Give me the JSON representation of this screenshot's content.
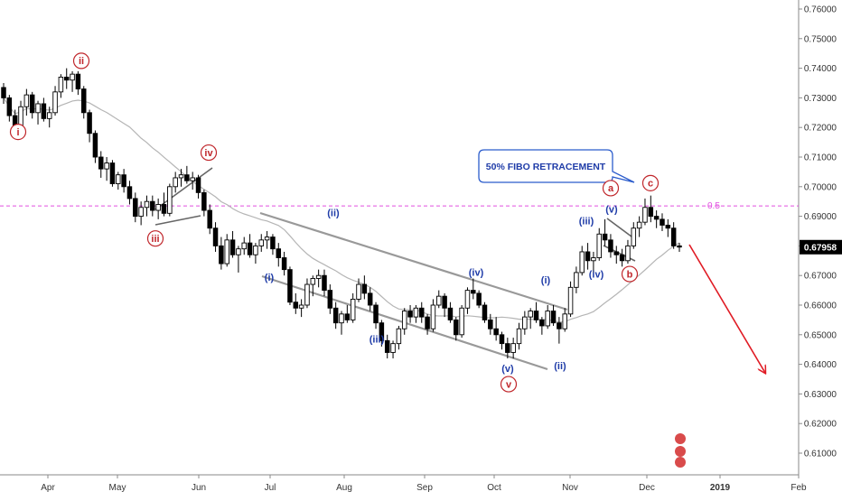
{
  "chart_data": {
    "type": "candlestick",
    "instrument_last_price": "0.67958",
    "y_ticks": [
      "0.76000",
      "0.75000",
      "0.74000",
      "0.73000",
      "0.72000",
      "0.71000",
      "0.70000",
      "0.69000",
      "0.68000",
      "0.67000",
      "0.66000",
      "0.65000",
      "0.64000",
      "0.63000",
      "0.62000",
      "0.61000"
    ],
    "x_ticks": [
      "Apr",
      "May",
      "Jun",
      "Jul",
      "Aug",
      "Sep",
      "Oct",
      "Nov",
      "Dec",
      "2019",
      "Feb"
    ],
    "ylim": [
      0.602,
      0.763
    ],
    "fib_level": {
      "label": "0.5",
      "value": 0.6935
    },
    "callout": "50% FIBO RETRACEMENT",
    "wave_labels": {
      "red": [
        {
          "text": "i",
          "value": 0.7185
        },
        {
          "text": "ii",
          "value": 0.7425
        },
        {
          "text": "iii",
          "value": 0.6825
        },
        {
          "text": "iv",
          "value": 0.7115
        },
        {
          "text": "v",
          "value": 0.6333
        },
        {
          "text": "a",
          "value": 0.6995
        },
        {
          "text": "b",
          "value": 0.6705
        },
        {
          "text": "c",
          "value": 0.7012
        }
      ],
      "blue": [
        {
          "text": "(i)",
          "value": 0.6694
        },
        {
          "text": "(ii)",
          "value": 0.6912
        },
        {
          "text": "(iii)",
          "value": 0.6485
        },
        {
          "text": "(iv)",
          "value": 0.6712
        },
        {
          "text": "(v)",
          "value": 0.6386
        },
        {
          "text": "(i)",
          "value": 0.6685
        },
        {
          "text": "(ii)",
          "value": 0.6395
        },
        {
          "text": "(iii)",
          "value": 0.6885
        },
        {
          "text": "(iv)",
          "value": 0.6705
        },
        {
          "text": "(v)",
          "value": 0.6925
        }
      ]
    },
    "candles": [
      [
        0.7335,
        0.735,
        0.728,
        0.73
      ],
      [
        0.73,
        0.731,
        0.722,
        0.724
      ],
      [
        0.724,
        0.726,
        0.717,
        0.72
      ],
      [
        0.72,
        0.729,
        0.719,
        0.727
      ],
      [
        0.727,
        0.733,
        0.724,
        0.731
      ],
      [
        0.731,
        0.732,
        0.723,
        0.725
      ],
      [
        0.725,
        0.729,
        0.721,
        0.728
      ],
      [
        0.728,
        0.73,
        0.722,
        0.723
      ],
      [
        0.723,
        0.727,
        0.72,
        0.725
      ],
      [
        0.725,
        0.734,
        0.724,
        0.732
      ],
      [
        0.732,
        0.738,
        0.73,
        0.737
      ],
      [
        0.737,
        0.74,
        0.733,
        0.736
      ],
      [
        0.736,
        0.739,
        0.732,
        0.738
      ],
      [
        0.738,
        0.739,
        0.731,
        0.733
      ],
      [
        0.733,
        0.734,
        0.723,
        0.725
      ],
      [
        0.725,
        0.726,
        0.715,
        0.718
      ],
      [
        0.718,
        0.719,
        0.708,
        0.71
      ],
      [
        0.71,
        0.712,
        0.703,
        0.706
      ],
      [
        0.706,
        0.71,
        0.702,
        0.708
      ],
      [
        0.708,
        0.709,
        0.7,
        0.701
      ],
      [
        0.701,
        0.705,
        0.699,
        0.704
      ],
      [
        0.704,
        0.706,
        0.698,
        0.7
      ],
      [
        0.7,
        0.702,
        0.694,
        0.696
      ],
      [
        0.696,
        0.698,
        0.688,
        0.69
      ],
      [
        0.69,
        0.695,
        0.687,
        0.693
      ],
      [
        0.693,
        0.697,
        0.69,
        0.695
      ],
      [
        0.695,
        0.697,
        0.69,
        0.692
      ],
      [
        0.692,
        0.696,
        0.689,
        0.694
      ],
      [
        0.694,
        0.698,
        0.69,
        0.691
      ],
      [
        0.691,
        0.701,
        0.69,
        0.7
      ],
      [
        0.7,
        0.705,
        0.698,
        0.703
      ],
      [
        0.703,
        0.706,
        0.7,
        0.704
      ],
      [
        0.704,
        0.707,
        0.701,
        0.702
      ],
      [
        0.702,
        0.705,
        0.699,
        0.703
      ],
      [
        0.703,
        0.704,
        0.696,
        0.698
      ],
      [
        0.698,
        0.699,
        0.69,
        0.692
      ],
      [
        0.692,
        0.694,
        0.684,
        0.686
      ],
      [
        0.686,
        0.688,
        0.678,
        0.68
      ],
      [
        0.68,
        0.683,
        0.672,
        0.674
      ],
      [
        0.674,
        0.684,
        0.673,
        0.682
      ],
      [
        0.682,
        0.685,
        0.676,
        0.677
      ],
      [
        0.677,
        0.68,
        0.671,
        0.679
      ],
      [
        0.679,
        0.683,
        0.677,
        0.681
      ],
      [
        0.681,
        0.684,
        0.676,
        0.677
      ],
      [
        0.677,
        0.681,
        0.674,
        0.68
      ],
      [
        0.68,
        0.684,
        0.678,
        0.682
      ],
      [
        0.682,
        0.685,
        0.679,
        0.683
      ],
      [
        0.683,
        0.684,
        0.677,
        0.679
      ],
      [
        0.679,
        0.681,
        0.673,
        0.676
      ],
      [
        0.676,
        0.678,
        0.67,
        0.672
      ],
      [
        0.672,
        0.673,
        0.66,
        0.661
      ],
      [
        0.661,
        0.664,
        0.657,
        0.659
      ],
      [
        0.659,
        0.662,
        0.656,
        0.66
      ],
      [
        0.66,
        0.669,
        0.659,
        0.667
      ],
      [
        0.667,
        0.67,
        0.663,
        0.669
      ],
      [
        0.669,
        0.672,
        0.666,
        0.67
      ],
      [
        0.67,
        0.672,
        0.663,
        0.665
      ],
      [
        0.665,
        0.667,
        0.657,
        0.659
      ],
      [
        0.659,
        0.661,
        0.652,
        0.654
      ],
      [
        0.654,
        0.658,
        0.65,
        0.657
      ],
      [
        0.657,
        0.66,
        0.654,
        0.655
      ],
      [
        0.655,
        0.664,
        0.654,
        0.662
      ],
      [
        0.662,
        0.669,
        0.661,
        0.667
      ],
      [
        0.667,
        0.67,
        0.662,
        0.664
      ],
      [
        0.664,
        0.666,
        0.658,
        0.66
      ],
      [
        0.66,
        0.661,
        0.652,
        0.654
      ],
      [
        0.654,
        0.655,
        0.646,
        0.648
      ],
      [
        0.648,
        0.65,
        0.642,
        0.644
      ],
      [
        0.644,
        0.648,
        0.642,
        0.647
      ],
      [
        0.647,
        0.653,
        0.645,
        0.652
      ],
      [
        0.652,
        0.659,
        0.65,
        0.658
      ],
      [
        0.658,
        0.66,
        0.654,
        0.656
      ],
      [
        0.656,
        0.66,
        0.654,
        0.659
      ],
      [
        0.659,
        0.661,
        0.654,
        0.656
      ],
      [
        0.656,
        0.657,
        0.65,
        0.652
      ],
      [
        0.652,
        0.662,
        0.651,
        0.66
      ],
      [
        0.66,
        0.665,
        0.659,
        0.663
      ],
      [
        0.663,
        0.664,
        0.656,
        0.659
      ],
      [
        0.659,
        0.661,
        0.654,
        0.655
      ],
      [
        0.655,
        0.656,
        0.648,
        0.65
      ],
      [
        0.65,
        0.66,
        0.649,
        0.659
      ],
      [
        0.659,
        0.666,
        0.657,
        0.665
      ],
      [
        0.665,
        0.669,
        0.662,
        0.664
      ],
      [
        0.664,
        0.665,
        0.659,
        0.66
      ],
      [
        0.66,
        0.661,
        0.654,
        0.655
      ],
      [
        0.655,
        0.657,
        0.65,
        0.652
      ],
      [
        0.652,
        0.656,
        0.648,
        0.65
      ],
      [
        0.65,
        0.651,
        0.645,
        0.647
      ],
      [
        0.647,
        0.649,
        0.642,
        0.644
      ],
      [
        0.644,
        0.649,
        0.642,
        0.647
      ],
      [
        0.647,
        0.654,
        0.645,
        0.652
      ],
      [
        0.652,
        0.658,
        0.65,
        0.656
      ],
      [
        0.656,
        0.659,
        0.652,
        0.658
      ],
      [
        0.658,
        0.661,
        0.654,
        0.655
      ],
      [
        0.655,
        0.656,
        0.65,
        0.653
      ],
      [
        0.653,
        0.66,
        0.652,
        0.658
      ],
      [
        0.658,
        0.66,
        0.653,
        0.654
      ],
      [
        0.654,
        0.656,
        0.647,
        0.652
      ],
      [
        0.652,
        0.659,
        0.651,
        0.657
      ],
      [
        0.657,
        0.668,
        0.656,
        0.666
      ],
      [
        0.666,
        0.673,
        0.664,
        0.671
      ],
      [
        0.671,
        0.68,
        0.67,
        0.678
      ],
      [
        0.678,
        0.681,
        0.672,
        0.675
      ],
      [
        0.675,
        0.678,
        0.671,
        0.676
      ],
      [
        0.676,
        0.686,
        0.675,
        0.684
      ],
      [
        0.684,
        0.689,
        0.68,
        0.682
      ],
      [
        0.682,
        0.684,
        0.676,
        0.678
      ],
      [
        0.678,
        0.68,
        0.674,
        0.677
      ],
      [
        0.677,
        0.679,
        0.673,
        0.675
      ],
      [
        0.675,
        0.682,
        0.674,
        0.68
      ],
      [
        0.68,
        0.688,
        0.679,
        0.686
      ],
      [
        0.686,
        0.69,
        0.683,
        0.688
      ],
      [
        0.688,
        0.696,
        0.687,
        0.693
      ],
      [
        0.693,
        0.697,
        0.688,
        0.69
      ],
      [
        0.69,
        0.692,
        0.686,
        0.689
      ],
      [
        0.689,
        0.691,
        0.685,
        0.687
      ],
      [
        0.687,
        0.689,
        0.683,
        0.686
      ],
      [
        0.686,
        0.688,
        0.679,
        0.68
      ],
      [
        0.68,
        0.681,
        0.678,
        0.6796
      ]
    ]
  }
}
